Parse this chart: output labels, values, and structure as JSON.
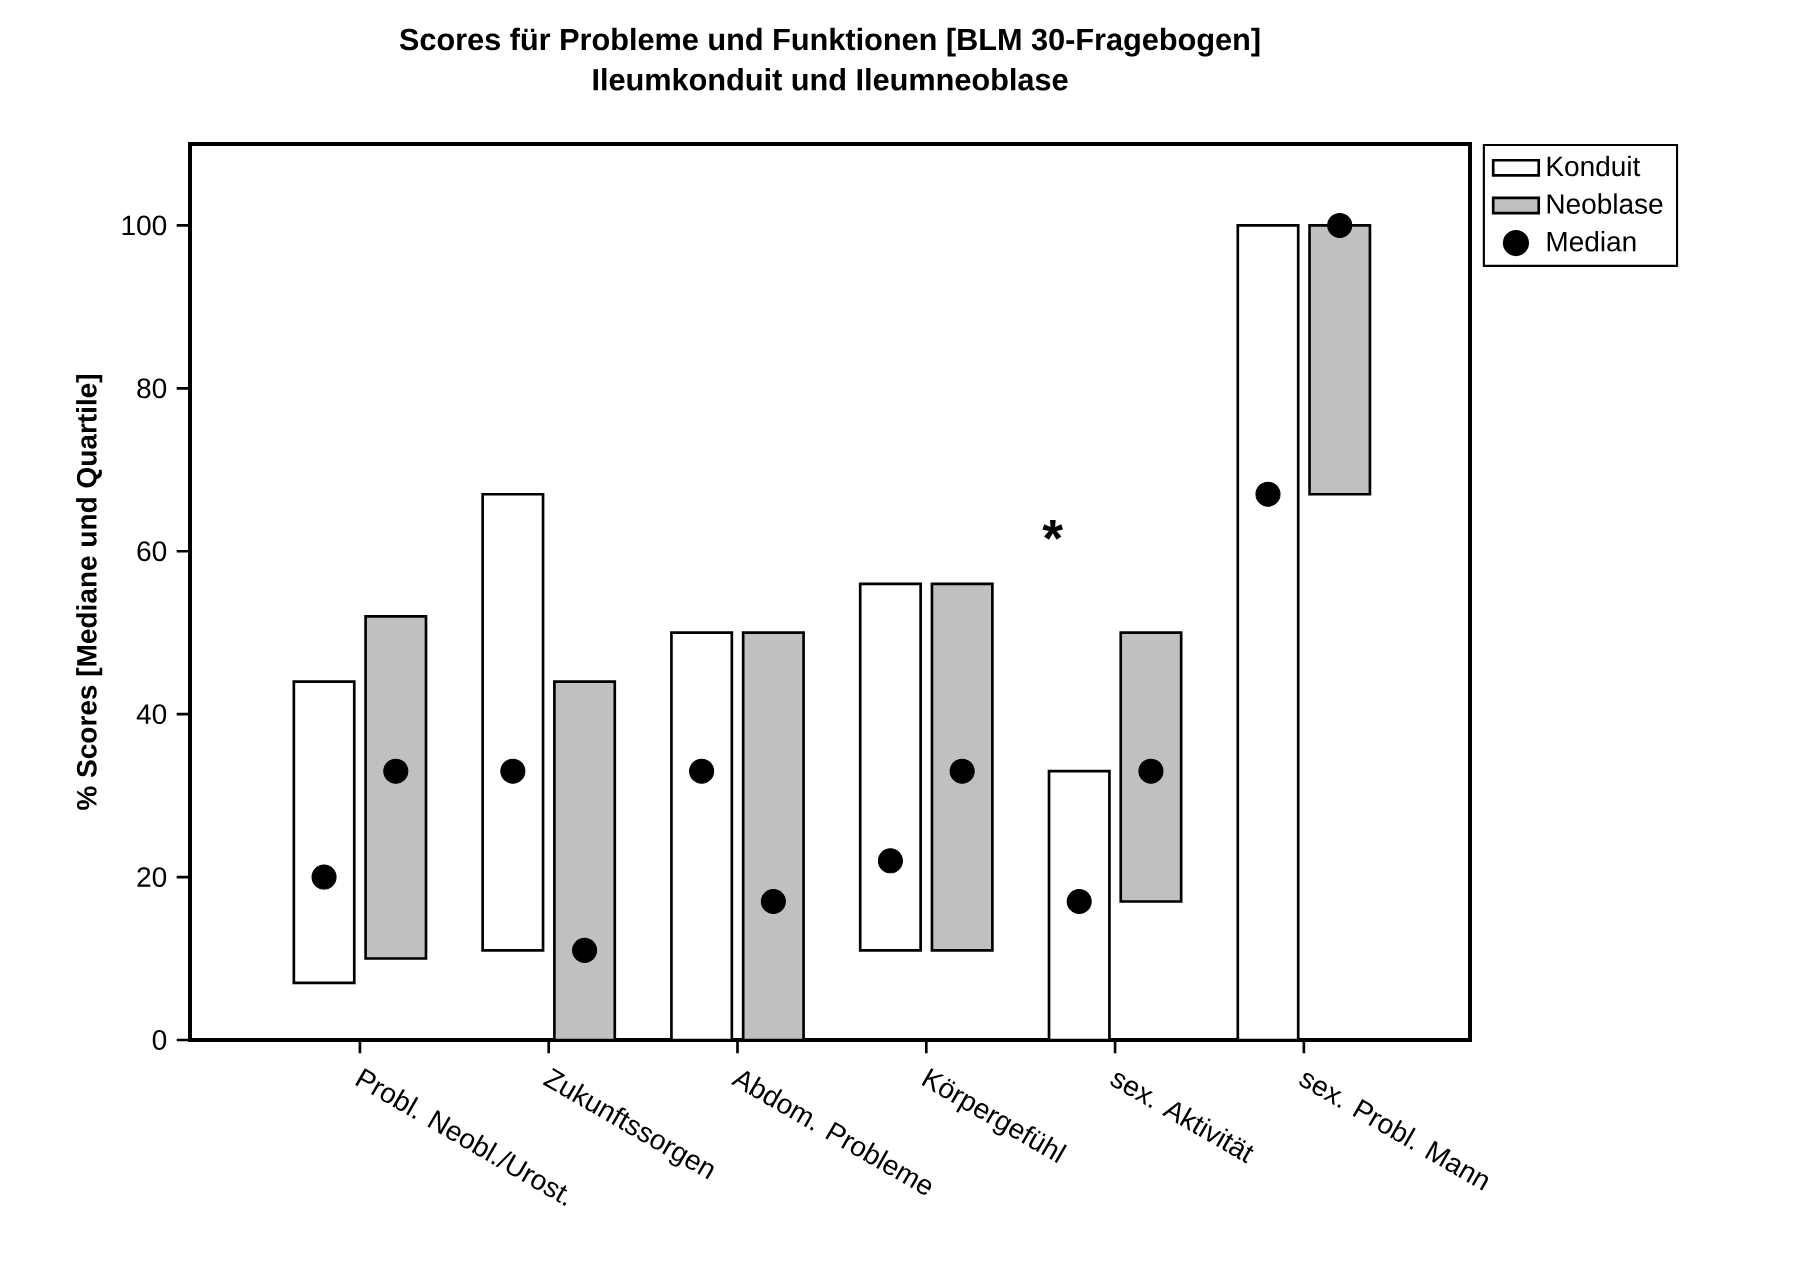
{
  "chart_data": {
    "type": "bar",
    "title": "Scores für Probleme und Funktionen [BLM 30-Fragebogen]",
    "subtitle": "Ileumkonduit und Ileumneoblase",
    "ylabel": "% Scores [Mediane und Quartile]",
    "categories": [
      "Probl. Neobl./Urost.",
      "Zukunftssorgen",
      "Abdom. Probleme",
      "Körpergefühl",
      "sex. Aktivität",
      "sex. Probl. Mann"
    ],
    "series": [
      {
        "name": "Konduit",
        "color": "#ffffff",
        "base": [
          7,
          11,
          0,
          11,
          0,
          0
        ],
        "values": [
          37,
          56,
          50,
          45,
          33,
          100
        ]
      },
      {
        "name": "Neoblase",
        "color": "#c0c0c0",
        "base": [
          10,
          0,
          0,
          11,
          17,
          67
        ],
        "values": [
          42,
          44,
          50,
          45,
          33,
          33
        ]
      },
      {
        "name": "Median",
        "type": "scatter",
        "marker": "circle",
        "color": "#000000",
        "x": [
          "Probl. Neobl./Urost.",
          "Zukunftssorgen",
          "Abdom. Probleme",
          "Körpergefühl",
          "sex. Aktivität",
          "sex. Probl. Mann"
        ],
        "values": [
          20,
          33,
          33,
          22,
          17,
          67
        ]
      },
      {
        "type": "scatter",
        "marker": "circle",
        "color": "#000000",
        "x": [
          "Probl. Neobl./Urost.",
          "Zukunftssorgen",
          "Abdom. Probleme",
          "Körpergefühl",
          "sex. Aktivität",
          "sex. Probl. Mann"
        ],
        "values": [
          33,
          11,
          17,
          33,
          33,
          100
        ]
      }
    ],
    "ylim": [
      0,
      110
    ],
    "yticks": [
      0,
      20,
      40,
      60,
      80,
      100
    ],
    "annotations": [
      "*"
    ],
    "legend": "top right"
  }
}
